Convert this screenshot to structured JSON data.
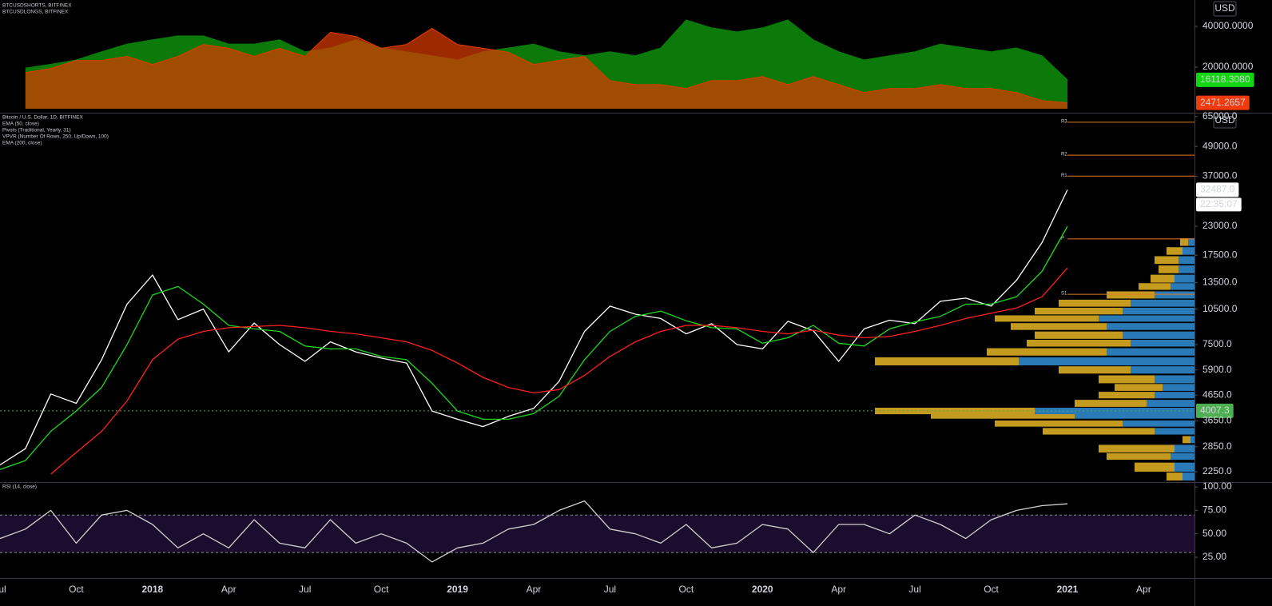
{
  "chart_data": [
    {
      "type": "area",
      "log_scale": true,
      "scale_label": "USD",
      "x": [
        "2017-07",
        "2017-08",
        "2017-09",
        "2017-10",
        "2017-11",
        "2017-12",
        "2018-01",
        "2018-02",
        "2018-03",
        "2018-04",
        "2018-05",
        "2018-06",
        "2018-07",
        "2018-08",
        "2018-09",
        "2018-10",
        "2018-11",
        "2018-12",
        "2019-01",
        "2019-02",
        "2019-03",
        "2019-04",
        "2019-05",
        "2019-06",
        "2019-07",
        "2019-08",
        "2019-09",
        "2019-10",
        "2019-11",
        "2019-12",
        "2020-01",
        "2020-02",
        "2020-03",
        "2020-04",
        "2020-05",
        "2020-06",
        "2020-07",
        "2020-08",
        "2020-09",
        "2020-10",
        "2020-11",
        "2020-12",
        "2021-01"
      ],
      "xlim": [
        "2017-07",
        "2021-06"
      ],
      "ylim": [
        9870,
        60900
      ],
      "yticks": [
        {
          "value": 20000,
          "label": "20000.0000"
        },
        {
          "value": 40000,
          "label": "40000.0000"
        }
      ],
      "y2lim": [
        0,
        45000
      ],
      "series": [
        {
          "name": "BTCUSDSHORTS, BITFINEX",
          "color": "#e03a00",
          "fill_opacity": 0.7,
          "axis": "y2",
          "label_color": "#f23b0c",
          "last_label": "2471.2657",
          "values": [
            null,
            15200,
            16900,
            20300,
            20300,
            22000,
            18600,
            22000,
            27000,
            25400,
            22000,
            25400,
            22000,
            32100,
            30400,
            25400,
            27000,
            33800,
            27000,
            25400,
            23700,
            18600,
            20300,
            22000,
            11800,
            10100,
            10100,
            8500,
            11800,
            11800,
            13500,
            10100,
            13500,
            10100,
            6800,
            8500,
            8500,
            10100,
            8500,
            8500,
            6800,
            3400,
            2471.2657
          ]
        },
        {
          "name": "BTCUSDLONGS, BITFINEX",
          "color": "#0b7a0b",
          "fill_opacity": 1,
          "label_color": "#12d612",
          "last_label": "16118.3080",
          "values": [
            null,
            19700,
            21000,
            22600,
            26000,
            29600,
            31800,
            34000,
            34000,
            29600,
            29600,
            31800,
            26000,
            27700,
            31800,
            27700,
            26000,
            24300,
            22600,
            26000,
            27700,
            29600,
            26000,
            24300,
            26000,
            24300,
            27700,
            44600,
            39000,
            36400,
            39000,
            44600,
            31800,
            26000,
            22600,
            24300,
            26000,
            29600,
            27700,
            26000,
            27700,
            24300,
            16118.308
          ]
        }
      ]
    },
    {
      "type": "line",
      "log_scale": true,
      "scale_label": "USD",
      "x": [
        "2017-07",
        "2017-08",
        "2017-09",
        "2017-10",
        "2017-11",
        "2017-12",
        "2018-01",
        "2018-02",
        "2018-03",
        "2018-04",
        "2018-05",
        "2018-06",
        "2018-07",
        "2018-08",
        "2018-09",
        "2018-10",
        "2018-11",
        "2018-12",
        "2019-01",
        "2019-02",
        "2019-03",
        "2019-04",
        "2019-05",
        "2019-06",
        "2019-07",
        "2019-08",
        "2019-09",
        "2019-10",
        "2019-11",
        "2019-12",
        "2020-01",
        "2020-02",
        "2020-03",
        "2020-04",
        "2020-05",
        "2020-06",
        "2020-07",
        "2020-08",
        "2020-09",
        "2020-10",
        "2020-11",
        "2020-12",
        "2021-01"
      ],
      "xlim": [
        "2017-07",
        "2021-06"
      ],
      "ylim": [
        2040,
        66900
      ],
      "yticks": [
        {
          "value": 2250,
          "label": "2250.0"
        },
        {
          "value": 2850,
          "label": "2850.0"
        },
        {
          "value": 3650,
          "label": "3650.0"
        },
        {
          "value": 4650,
          "label": "4650.0"
        },
        {
          "value": 5900,
          "label": "5900.0"
        },
        {
          "value": 7500,
          "label": "7500.0"
        },
        {
          "value": 10500,
          "label": "10500.0"
        },
        {
          "value": 13500,
          "label": "13500.0"
        },
        {
          "value": 17500,
          "label": "17500.0"
        },
        {
          "value": 23000,
          "label": "23000.0"
        },
        {
          "value": 37000,
          "label": "37000.0"
        },
        {
          "value": 49000,
          "label": "49000.0"
        },
        {
          "value": 65000,
          "label": "65000.0"
        }
      ],
      "series": [
        {
          "name": "Bitcoin / U.S. Dollar, 1D, BITFINEX",
          "color": "#ffffff",
          "last_label": "32487.0",
          "countdown": "22:35:07",
          "values": [
            2400,
            2800,
            4700,
            4300,
            6500,
            11000,
            14500,
            9500,
            10500,
            7000,
            9200,
            7500,
            6400,
            7700,
            7000,
            6600,
            6300,
            4000,
            3700,
            3450,
            3800,
            4100,
            5300,
            8500,
            10800,
            10000,
            9600,
            8300,
            9150,
            7500,
            7200,
            9350,
            8550,
            6400,
            8700,
            9450,
            9150,
            11300,
            11650,
            10800,
            13800,
            19700,
            32487
          ]
        },
        {
          "name": "EMA (50, close)",
          "color": "#1ed81e",
          "values": [
            2300,
            2500,
            3300,
            4000,
            5000,
            7500,
            12000,
            13000,
            11000,
            9000,
            8700,
            8500,
            7400,
            7200,
            7200,
            6700,
            6500,
            5200,
            4000,
            3700,
            3700,
            3900,
            4600,
            6500,
            8500,
            9800,
            10300,
            9400,
            8800,
            8700,
            7600,
            8000,
            9000,
            7600,
            7400,
            8700,
            9300,
            9800,
            11000,
            11000,
            11800,
            15000,
            23000
          ]
        },
        {
          "name": "EMA (200, close)",
          "color": "#ff2020",
          "values": [
            null,
            null,
            2200,
            2700,
            3300,
            4400,
            6500,
            7900,
            8500,
            8800,
            8900,
            9000,
            8800,
            8500,
            8300,
            8000,
            7700,
            7100,
            6300,
            5500,
            5000,
            4750,
            4900,
            5600,
            6700,
            7700,
            8500,
            9000,
            9000,
            8800,
            8500,
            8300,
            8600,
            8200,
            8000,
            8100,
            8500,
            9000,
            9600,
            10100,
            10600,
            11800,
            15500
          ]
        }
      ],
      "pivots": {
        "name": "Pivots (Traditional, Yearly, 31)",
        "color": "#e07b22",
        "levels": [
          {
            "name": "R3",
            "value": 61600
          },
          {
            "name": "R2",
            "value": 45100
          },
          {
            "name": "R1",
            "value": 37000
          },
          {
            "name": "P",
            "value": 20400
          },
          {
            "name": "S1",
            "value": 12080
          }
        ]
      },
      "volume_profile": {
        "name": "VPVR (Number Of Rows, 250, Up/Down, 100)",
        "up_color": "#2a7ab8",
        "down_color": "#c49a1f",
        "prices": [
          2150,
          2350,
          2600,
          2800,
          3050,
          3300,
          3550,
          3800,
          4000,
          4300,
          4650,
          5000,
          5400,
          5900,
          6400,
          7000,
          7600,
          8200,
          8900,
          9600,
          10300,
          11100,
          12000,
          13000,
          14000,
          15300,
          16700,
          18200,
          19800
        ],
        "up": [
          15,
          25,
          30,
          25,
          5,
          50,
          90,
          150,
          200,
          60,
          50,
          40,
          50,
          80,
          220,
          110,
          80,
          90,
          110,
          120,
          90,
          80,
          50,
          30,
          25,
          20,
          20,
          15,
          8
        ],
        "down": [
          20,
          50,
          80,
          95,
          10,
          140,
          160,
          180,
          200,
          90,
          70,
          60,
          70,
          90,
          180,
          150,
          130,
          110,
          120,
          130,
          110,
          90,
          60,
          40,
          30,
          25,
          30,
          20,
          10
        ]
      },
      "poc": 4007.3,
      "poc_color": "#4caf50"
    },
    {
      "type": "line",
      "x": [
        "2017-07",
        "2017-08",
        "2017-09",
        "2017-10",
        "2017-11",
        "2017-12",
        "2018-01",
        "2018-02",
        "2018-03",
        "2018-04",
        "2018-05",
        "2018-06",
        "2018-07",
        "2018-08",
        "2018-09",
        "2018-10",
        "2018-11",
        "2018-12",
        "2019-01",
        "2019-02",
        "2019-03",
        "2019-04",
        "2019-05",
        "2019-06",
        "2019-07",
        "2019-08",
        "2019-09",
        "2019-10",
        "2019-11",
        "2019-12",
        "2020-01",
        "2020-02",
        "2020-03",
        "2020-04",
        "2020-05",
        "2020-06",
        "2020-07",
        "2020-08",
        "2020-09",
        "2020-10",
        "2020-11",
        "2020-12",
        "2021-01"
      ],
      "xlim": [
        "2017-07",
        "2021-06"
      ],
      "xticks": [
        {
          "value": "2017-07",
          "label": "Jul"
        },
        {
          "value": "2017-10",
          "label": "Oct"
        },
        {
          "value": "2018-01",
          "label": "2018"
        },
        {
          "value": "2018-04",
          "label": "Apr"
        },
        {
          "value": "2018-07",
          "label": "Jul"
        },
        {
          "value": "2018-10",
          "label": "Oct"
        },
        {
          "value": "2019-01",
          "label": "2019"
        },
        {
          "value": "2019-04",
          "label": "Apr"
        },
        {
          "value": "2019-07",
          "label": "Jul"
        },
        {
          "value": "2019-10",
          "label": "Oct"
        },
        {
          "value": "2020-01",
          "label": "2020"
        },
        {
          "value": "2020-04",
          "label": "Apr"
        },
        {
          "value": "2020-07",
          "label": "Jul"
        },
        {
          "value": "2020-10",
          "label": "Oct"
        },
        {
          "value": "2021-01",
          "label": "2021"
        },
        {
          "value": "2021-04",
          "label": "Apr"
        }
      ],
      "ylim": [
        3.7,
        104.3
      ],
      "yticks": [
        {
          "value": 25,
          "label": "25.00"
        },
        {
          "value": 50,
          "label": "50.00"
        },
        {
          "value": 75,
          "label": "75.00"
        },
        {
          "value": 100,
          "label": "100.00"
        }
      ],
      "band": [
        30,
        70
      ],
      "band_color": "#1c0c2e",
      "series": [
        {
          "name": "RSI (14, close)",
          "color": "#d0d0d0",
          "values": [
            45,
            55,
            75,
            40,
            70,
            75,
            60,
            35,
            50,
            35,
            65,
            40,
            35,
            65,
            40,
            50,
            40,
            20,
            35,
            40,
            55,
            60,
            75,
            85,
            55,
            50,
            40,
            60,
            35,
            40,
            60,
            55,
            30,
            60,
            60,
            50,
            70,
            60,
            45,
            65,
            75,
            80,
            82
          ]
        }
      ]
    }
  ]
}
